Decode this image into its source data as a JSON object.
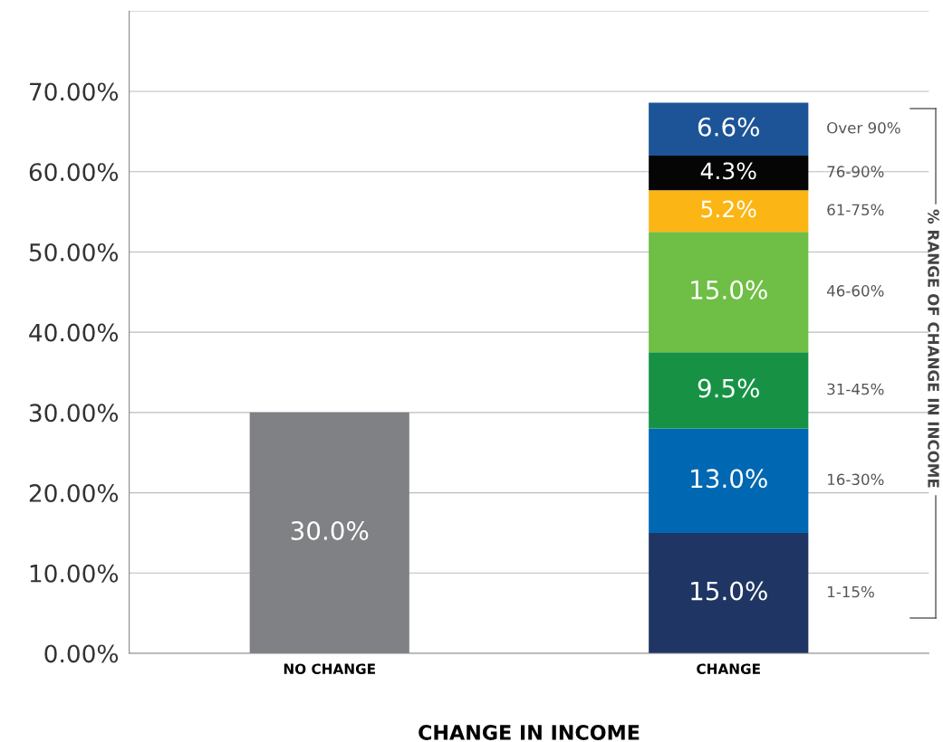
{
  "chart_data": {
    "type": "bar",
    "stacked": true,
    "xlabel": "CHANGE IN INCOME",
    "legend_title": "% RANGE OF CHANGE IN INCOME",
    "categories": [
      "NO CHANGE",
      "CHANGE"
    ],
    "series": [
      {
        "color": "#808184",
        "values": [
          30.0,
          null
        ],
        "value_labels": [
          "30.0%",
          null
        ]
      },
      {
        "name": "1-15%",
        "color": "#1f3664",
        "values": [
          null,
          15.0
        ],
        "value_labels": [
          null,
          "15.0%"
        ]
      },
      {
        "name": "16-30%",
        "color": "#0068b2",
        "values": [
          null,
          13.0
        ],
        "value_labels": [
          null,
          "13.0%"
        ]
      },
      {
        "name": "31-45%",
        "color": "#179245",
        "values": [
          null,
          9.5
        ],
        "value_labels": [
          null,
          "9.5%"
        ]
      },
      {
        "name": "46-60%",
        "color": "#6fbe45",
        "values": [
          null,
          15.0
        ],
        "value_labels": [
          null,
          "15.0%"
        ]
      },
      {
        "name": "61-75%",
        "color": "#fbb616",
        "values": [
          null,
          5.2
        ],
        "value_labels": [
          null,
          "5.2%"
        ]
      },
      {
        "name": "76-90%",
        "color": "#050505",
        "values": [
          null,
          4.3
        ],
        "value_labels": [
          null,
          "4.3%"
        ]
      },
      {
        "name": "Over 90%",
        "color": "#1d5497",
        "values": [
          null,
          6.6
        ],
        "value_labels": [
          null,
          "6.6%"
        ]
      }
    ],
    "ylim": [
      0,
      80
    ],
    "yticks": [
      {
        "value": 0,
        "label": "0.00%"
      },
      {
        "value": 10,
        "label": "10.00%"
      },
      {
        "value": 20,
        "label": "20.00%"
      },
      {
        "value": 30,
        "label": "30.00%"
      },
      {
        "value": 40,
        "label": "40.00%"
      },
      {
        "value": 50,
        "label": "50.00%"
      },
      {
        "value": 60,
        "label": "60.00%"
      },
      {
        "value": 70,
        "label": "70.00%"
      },
      {
        "value": 80,
        "label": null
      }
    ],
    "grid": "y",
    "legend": "right"
  }
}
